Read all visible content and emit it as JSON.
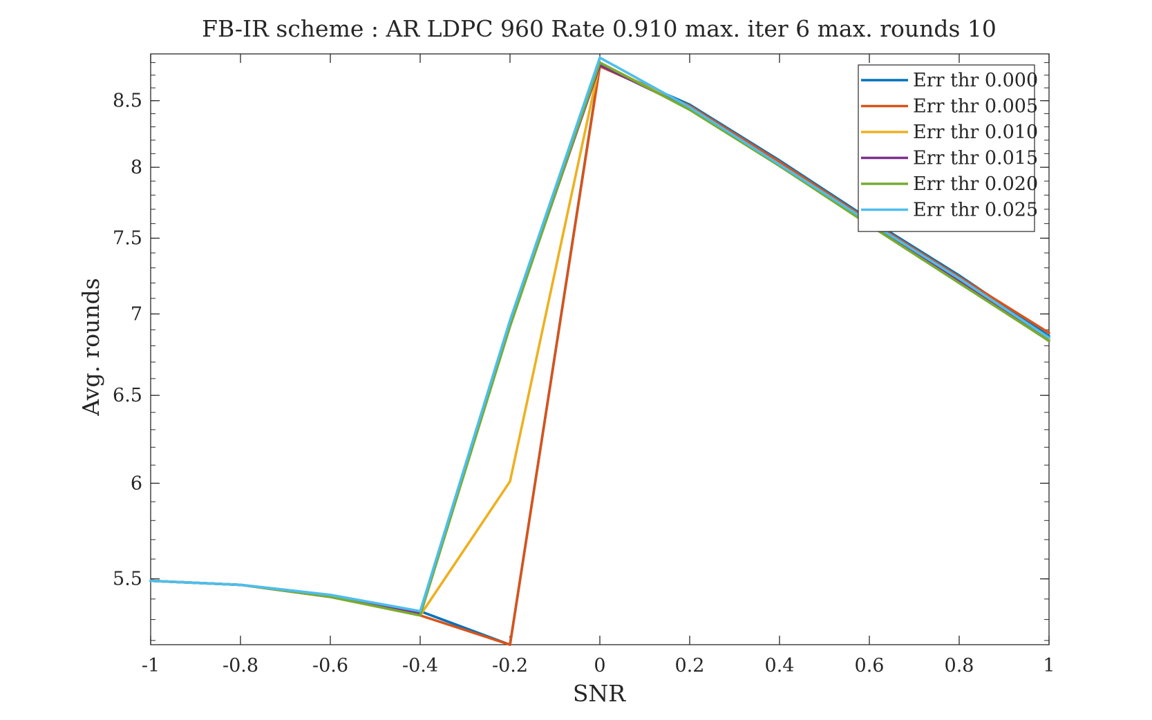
{
  "chart_data": {
    "type": "line",
    "title": "FB-IR scheme : AR LDPC 960 Rate 0.910 max. iter 6 max. rounds 10",
    "xlabel": "SNR",
    "ylabel": "Avg. rounds",
    "xlim": [
      -1,
      1
    ],
    "ylim": [
      5.18,
      8.87
    ],
    "yscale": "log",
    "x": [
      -1,
      -0.8,
      -0.6,
      -0.4,
      -0.2,
      0,
      0.2,
      0.4,
      0.6,
      0.8,
      1
    ],
    "xticks": [
      -1,
      -0.8,
      -0.6,
      -0.4,
      -0.2,
      0,
      0.2,
      0.4,
      0.6,
      0.8,
      1
    ],
    "xtick_labels": [
      "-1",
      "-0.8",
      "-0.6",
      "-0.4",
      "-0.2",
      "0",
      "0.2",
      "0.4",
      "0.6",
      "0.8",
      "1"
    ],
    "yticks": [
      5.5,
      6,
      6.5,
      7,
      7.5,
      8,
      8.5
    ],
    "ytick_labels": [
      "5.5",
      "6",
      "6.5",
      "7",
      "7.5",
      "8",
      "8.5"
    ],
    "grid": false,
    "box": true,
    "legend_position": "top-right",
    "series": [
      {
        "name": "Err thr 0.000",
        "color": "#0072BD",
        "values": [
          5.49,
          5.47,
          5.42,
          5.34,
          5.18,
          8.78,
          8.47,
          8.05,
          7.63,
          7.25,
          6.86
        ]
      },
      {
        "name": "Err thr 0.005",
        "color": "#D95319",
        "values": [
          5.49,
          5.47,
          5.41,
          5.32,
          5.18,
          8.77,
          8.46,
          8.04,
          7.62,
          7.24,
          6.88
        ]
      },
      {
        "name": "Err thr 0.010",
        "color": "#EDB120",
        "values": [
          5.49,
          5.47,
          5.41,
          5.32,
          6.01,
          8.8,
          8.44,
          8.02,
          7.61,
          7.22,
          6.84
        ]
      },
      {
        "name": "Err thr 0.015",
        "color": "#7E2F8E",
        "values": [
          5.49,
          5.47,
          5.41,
          5.33,
          6.93,
          8.78,
          8.44,
          8.01,
          7.6,
          7.21,
          6.83
        ]
      },
      {
        "name": "Err thr 0.020",
        "color": "#77AC30",
        "values": [
          5.49,
          5.47,
          5.41,
          5.32,
          6.92,
          8.8,
          8.43,
          8.01,
          7.59,
          7.2,
          6.83
        ]
      },
      {
        "name": "Err thr 0.025",
        "color": "#4DBEEE",
        "values": [
          5.49,
          5.47,
          5.42,
          5.34,
          6.96,
          8.84,
          8.45,
          8.02,
          7.61,
          7.23,
          6.85
        ]
      }
    ]
  }
}
